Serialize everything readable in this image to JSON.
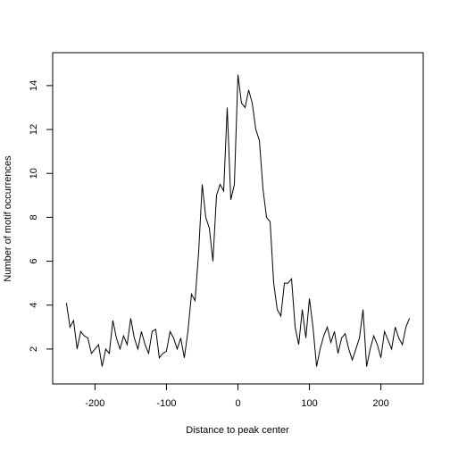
{
  "chart_data": {
    "type": "line",
    "xlabel": "Distance to peak center",
    "ylabel": "Number of motif occurrences",
    "x": [
      -240,
      -235,
      -230,
      -225,
      -220,
      -215,
      -210,
      -205,
      -200,
      -195,
      -190,
      -185,
      -180,
      -175,
      -170,
      -165,
      -160,
      -155,
      -150,
      -145,
      -140,
      -135,
      -130,
      -125,
      -120,
      -115,
      -110,
      -105,
      -100,
      -95,
      -90,
      -85,
      -80,
      -75,
      -70,
      -65,
      -60,
      -55,
      -50,
      -45,
      -40,
      -35,
      -30,
      -25,
      -20,
      -15,
      -10,
      -5,
      0,
      5,
      10,
      15,
      20,
      25,
      30,
      35,
      40,
      45,
      50,
      55,
      60,
      65,
      70,
      75,
      80,
      85,
      90,
      95,
      100,
      105,
      110,
      115,
      120,
      125,
      130,
      135,
      140,
      145,
      150,
      155,
      160,
      165,
      170,
      175,
      180,
      185,
      190,
      195,
      200,
      205,
      210,
      215,
      220,
      225,
      230,
      235,
      240
    ],
    "series": [
      {
        "color": "#000000",
        "values": [
          4.1,
          3.0,
          3.3,
          2.0,
          2.8,
          2.6,
          2.5,
          1.8,
          2.0,
          2.2,
          1.2,
          2.0,
          1.8,
          3.3,
          2.5,
          2.0,
          2.6,
          2.2,
          3.4,
          2.5,
          2.0,
          2.8,
          2.2,
          1.8,
          2.8,
          2.9,
          1.6,
          1.8,
          1.9,
          2.8,
          2.5,
          2.0,
          2.5,
          1.6,
          2.8,
          4.5,
          4.2,
          6.4,
          9.5,
          8.0,
          7.5,
          6.0,
          9.0,
          9.5,
          9.2,
          13.0,
          8.8,
          9.5,
          14.5,
          13.2,
          13.0,
          13.8,
          13.2,
          12.0,
          11.5,
          9.3,
          8.0,
          7.8,
          5.0,
          3.8,
          3.5,
          5.0,
          5.0,
          5.2,
          3.0,
          2.2,
          3.8,
          2.5,
          4.3,
          3.0,
          1.2,
          2.0,
          2.6,
          3.0,
          2.3,
          2.8,
          1.8,
          2.5,
          2.7,
          2.0,
          1.5,
          2.0,
          2.5,
          3.8,
          1.2,
          2.0,
          2.6,
          2.2,
          1.6,
          2.8,
          2.4,
          2.0,
          3.0,
          2.5,
          2.2,
          3.0,
          3.4
        ]
      }
    ],
    "xlim": [
      -259.2,
      259.2
    ],
    "ylim": [
      0.41,
      15.5
    ],
    "xticks": [
      -200,
      -100,
      0,
      100,
      200
    ],
    "yticks": [
      2,
      4,
      6,
      8,
      10,
      12,
      14
    ]
  }
}
